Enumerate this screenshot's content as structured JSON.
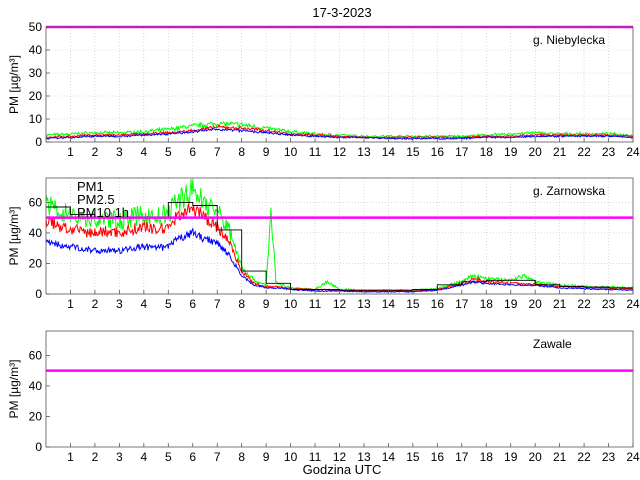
{
  "title": "17-3-2023",
  "xlabel": "Godzina UTC",
  "colors": {
    "PM1": "#0000ff",
    "PM2.5": "#ff0000",
    "PM10": "#00ff00",
    "PM10_1h": "#000000",
    "norm": "#ff00ff",
    "grid": "#bfbfbf",
    "axes": "#555555"
  },
  "chart_data": [
    {
      "type": "line",
      "station": "g. Niebylecka",
      "ylabel": "PM [µg/m³]",
      "ylim": [
        0,
        50
      ],
      "yticks": [
        0,
        10,
        20,
        30,
        40,
        50
      ],
      "xlim": [
        0,
        24
      ],
      "xticks": [
        "1",
        "2",
        "3",
        "4",
        "5",
        "6",
        "7",
        "8",
        "9",
        "10",
        "11",
        "12",
        "13",
        "14",
        "15",
        "16",
        "17",
        "18",
        "19",
        "20",
        "21",
        "22",
        "23",
        "24"
      ],
      "grid": true,
      "norm_line": 50,
      "series": [
        {
          "name": "PM1",
          "x": [
            0,
            1,
            2,
            3,
            4,
            5,
            6,
            7,
            8,
            9,
            10,
            11,
            12,
            13,
            14,
            15,
            16,
            17,
            18,
            19,
            20,
            21,
            22,
            23,
            24
          ],
          "values": [
            1.5,
            2,
            2.5,
            2.5,
            3,
            3.5,
            4.5,
            5.5,
            5,
            4,
            3,
            2.5,
            2,
            2,
            1.5,
            1.5,
            1.5,
            1.5,
            2,
            2,
            2.5,
            2.5,
            2.5,
            2.5,
            2
          ]
        },
        {
          "name": "PM2.5",
          "x": [
            0,
            1,
            2,
            3,
            4,
            5,
            6,
            7,
            8,
            9,
            10,
            11,
            12,
            13,
            14,
            15,
            16,
            17,
            18,
            19,
            20,
            21,
            22,
            23,
            24
          ],
          "values": [
            2,
            2.5,
            3,
            3,
            3.5,
            4,
            5,
            6.5,
            6,
            5,
            3.5,
            3,
            2.5,
            2,
            2,
            2,
            2,
            2,
            2.5,
            2.5,
            3,
            3,
            3,
            3,
            2.5
          ]
        },
        {
          "name": "PM10",
          "x": [
            0,
            1,
            2,
            3,
            4,
            5,
            6,
            7,
            8,
            9,
            10,
            11,
            12,
            13,
            14,
            15,
            16,
            17,
            18,
            19,
            20,
            21,
            22,
            23,
            24
          ],
          "values": [
            3,
            3.5,
            4,
            4,
            4.5,
            5.5,
            7,
            8,
            7.5,
            6,
            4.5,
            3.5,
            3,
            2.5,
            2.5,
            2.5,
            2.5,
            2.5,
            3,
            3.5,
            4,
            3.5,
            3.5,
            3.5,
            3
          ]
        }
      ]
    },
    {
      "type": "line",
      "station": "g. Zarnowska",
      "ylabel": "PM [µg/m³]",
      "ylim": [
        0,
        76
      ],
      "yticks": [
        0,
        20,
        40,
        60
      ],
      "xlim": [
        0,
        24
      ],
      "xticks": [
        "1",
        "2",
        "3",
        "4",
        "5",
        "6",
        "7",
        "8",
        "9",
        "10",
        "11",
        "12",
        "13",
        "14",
        "15",
        "16",
        "17",
        "18",
        "19",
        "20",
        "21",
        "22",
        "23",
        "24"
      ],
      "grid": true,
      "norm_line": 50,
      "legend": [
        "PM1",
        "PM2.5",
        "PM10 1h"
      ],
      "legend_position": "top-left",
      "series": [
        {
          "name": "PM1",
          "x": [
            0,
            0.5,
            1,
            1.5,
            2,
            2.5,
            3,
            3.5,
            4,
            4.5,
            5,
            5.5,
            6,
            6.5,
            7,
            7.5,
            8,
            8.5,
            9,
            9.5,
            10,
            11,
            12,
            13,
            14,
            15,
            16,
            16.5,
            17,
            17.5,
            18,
            19,
            20,
            20.5,
            21,
            22,
            23,
            24
          ],
          "values": [
            35,
            32,
            31,
            30,
            28,
            29,
            28,
            30,
            31,
            30,
            31,
            37,
            40,
            36,
            34,
            25,
            12,
            6,
            4,
            4,
            3,
            2,
            2,
            1.5,
            1.5,
            1.5,
            2.5,
            4,
            6,
            8,
            7,
            6,
            5.5,
            5,
            4,
            3.5,
            3,
            2.5
          ]
        },
        {
          "name": "PM2.5",
          "x": [
            0,
            0.5,
            1,
            1.5,
            2,
            2.5,
            3,
            3.5,
            4,
            4.5,
            5,
            5.5,
            6,
            6.5,
            7,
            7.5,
            8,
            8.5,
            9,
            9.5,
            10,
            11,
            12,
            13,
            14,
            15,
            16,
            16.5,
            17,
            17.5,
            18,
            19,
            20,
            20.5,
            21,
            22,
            23,
            24
          ],
          "values": [
            48,
            45,
            42,
            41,
            40,
            41,
            40,
            42,
            44,
            42,
            44,
            53,
            56,
            50,
            44,
            34,
            15,
            7,
            5,
            5,
            3.5,
            3,
            2.5,
            2,
            2,
            2,
            3,
            5,
            7,
            10,
            8.5,
            7,
            6.5,
            6,
            5,
            4.5,
            4,
            3.5
          ]
        },
        {
          "name": "PM10",
          "x": [
            0,
            0.5,
            1,
            1.5,
            2,
            2.5,
            3,
            3.5,
            4,
            4.5,
            5,
            5.5,
            6,
            6.5,
            7,
            7.5,
            8,
            8.5,
            9,
            9.2,
            9.4,
            9.6,
            10,
            11,
            11.5,
            12,
            13,
            14,
            15,
            16,
            16.5,
            17,
            17.5,
            18,
            19,
            19.5,
            20,
            20.5,
            21,
            22,
            23,
            24
          ],
          "values": [
            58,
            55,
            52,
            50,
            48,
            49,
            48,
            50,
            52,
            50,
            53,
            63,
            68,
            60,
            54,
            42,
            18,
            9,
            6,
            55,
            8,
            6,
            4,
            3,
            8,
            3,
            2.5,
            2.5,
            2.5,
            3.5,
            6,
            8,
            12,
            10,
            9,
            12,
            8,
            7,
            6,
            5,
            4.5,
            4
          ]
        },
        {
          "name": "PM10 1h",
          "x": [
            0,
            1,
            2,
            3,
            4,
            5,
            6,
            7,
            8,
            9,
            10,
            11,
            12,
            13,
            14,
            15,
            16,
            17,
            18,
            19,
            20,
            21,
            22,
            23
          ],
          "values": [
            57,
            52,
            50,
            50,
            50,
            60,
            58,
            42,
            15,
            7,
            3,
            3,
            2.5,
            2.5,
            2.5,
            3,
            6,
            8,
            9,
            9,
            6,
            5,
            4.5,
            4
          ]
        }
      ]
    },
    {
      "type": "line",
      "station": "Zawale",
      "ylabel": "PM [µg/m³]",
      "ylim": [
        0,
        76
      ],
      "yticks": [
        0,
        20,
        40,
        60
      ],
      "xlim": [
        0,
        24
      ],
      "xticks": [
        "1",
        "2",
        "3",
        "4",
        "5",
        "6",
        "7",
        "8",
        "9",
        "10",
        "11",
        "12",
        "13",
        "14",
        "15",
        "16",
        "17",
        "18",
        "19",
        "20",
        "21",
        "22",
        "23",
        "24"
      ],
      "grid": false,
      "norm_line": 50,
      "series": []
    }
  ]
}
